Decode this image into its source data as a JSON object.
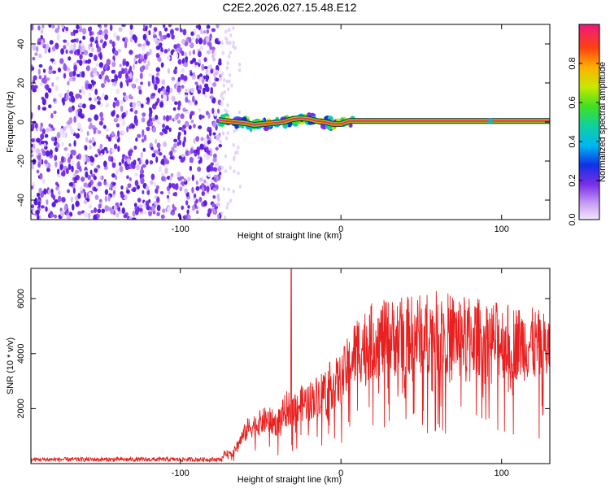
{
  "chart_data": [
    {
      "type": "heatmap",
      "title": "C2E2.2026.027.15.48.E12",
      "xlabel": "Height of straight line (km)",
      "ylabel": "Frequency (Hz)",
      "xlim": [
        -193,
        130
      ],
      "ylim": [
        -50,
        50
      ],
      "xticks": [
        -100,
        0,
        100
      ],
      "xtick_labels": [
        "-100",
        "0",
        "100"
      ],
      "yticks": [
        -40,
        -20,
        0,
        20,
        40
      ],
      "ytick_labels": [
        "-40",
        "-20",
        "0",
        "20",
        "40"
      ],
      "noise_region_x": [
        -193,
        -75
      ],
      "signal_track": {
        "x": [
          -76,
          -72,
          -66,
          -60,
          -54,
          -48,
          -42,
          -36,
          -30,
          -25,
          -20,
          -15,
          -10,
          -5,
          0,
          5,
          10,
          130
        ],
        "y": [
          1,
          0.5,
          0,
          -0.5,
          -1.5,
          -1,
          -0.5,
          0,
          1.5,
          2,
          1.5,
          0.5,
          0,
          -1,
          -1,
          0.5,
          0.5,
          0.5
        ]
      },
      "colorbar": {
        "label": "Normalized spectral amplitude",
        "range": [
          0,
          1
        ],
        "ticks": [
          0.0,
          0.2,
          0.4,
          0.6,
          0.8
        ],
        "tick_labels": [
          "0.0",
          "0.2",
          "0.4",
          "0.6",
          "0.8"
        ]
      }
    },
    {
      "type": "line",
      "xlabel": "Height of straight line (km)",
      "ylabel": "SNR (10 * v/v)",
      "xlim": [
        -193,
        130
      ],
      "ylim": [
        0,
        7100
      ],
      "xticks": [
        -100,
        0,
        100
      ],
      "xtick_labels": [
        "-100",
        "0",
        "100"
      ],
      "yticks": [
        2000,
        4000,
        6000
      ],
      "ytick_labels": [
        "2000",
        "4000",
        "6000"
      ],
      "series": [
        {
          "name": "SNR",
          "color": "#e82020",
          "envelope_x": [
            -193,
            -75,
            -72,
            -68,
            -64,
            -58,
            -52,
            -46,
            -40,
            -34,
            -28,
            -22,
            -16,
            -10,
            -5,
            0,
            5,
            10,
            20,
            30,
            40,
            50,
            60,
            70,
            80,
            90,
            100,
            110,
            120,
            130
          ],
          "envelope_y": [
            150,
            150,
            500,
            400,
            900,
            1600,
            1800,
            2000,
            1800,
            2500,
            2600,
            2800,
            3000,
            3400,
            3600,
            3800,
            4500,
            5200,
            5600,
            5700,
            5800,
            5900,
            6000,
            5900,
            5800,
            5700,
            5600,
            5500,
            5400,
            5200
          ],
          "spike": {
            "x": -31,
            "y": 7100
          }
        }
      ]
    }
  ],
  "colors": {
    "line": "#e82020",
    "noise": "#7030e0",
    "track_core": "#e83050",
    "track_edge": "#20c040"
  }
}
